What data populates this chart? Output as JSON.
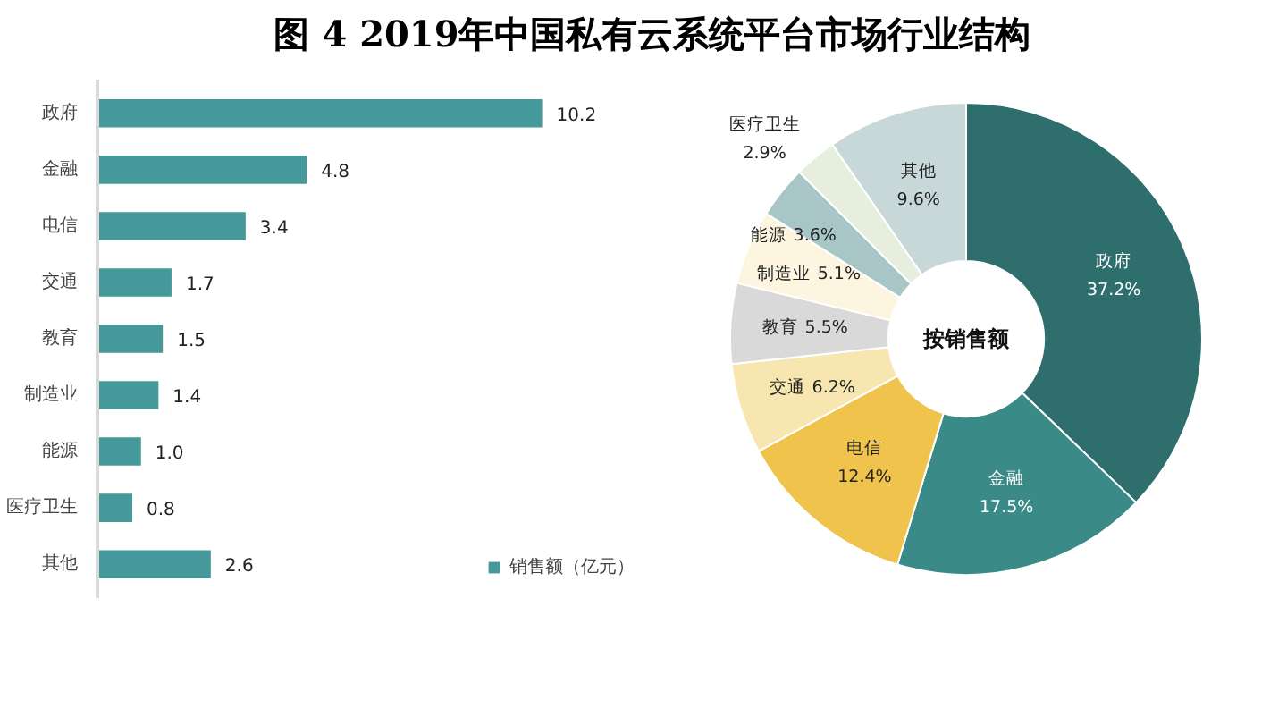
{
  "chart_data": [
    {
      "type": "bar",
      "title": "图 4  2019年中国私有云系统平台市场行业结构",
      "orientation": "horizontal",
      "categories": [
        "政府",
        "金融",
        "电信",
        "交通",
        "教育",
        "制造业",
        "能源",
        "医疗卫生",
        "其他"
      ],
      "series": [
        {
          "name": "销售额（亿元）",
          "color": "#45999a",
          "values": [
            10.2,
            4.8,
            3.4,
            1.7,
            1.5,
            1.4,
            1.0,
            0.8,
            2.6
          ],
          "value_labels": [
            "10.2",
            "4.8",
            "3.4",
            "1.7",
            "1.5",
            "1.4",
            "1.0",
            "0.8",
            "2.6"
          ]
        }
      ],
      "legend": "bottom right",
      "tick_labels": "y"
    },
    {
      "type": "donut",
      "title": "按销售额",
      "categories": [
        "政府",
        "金融",
        "电信",
        "交通",
        "教育",
        "制造业",
        "能源",
        "医疗卫生",
        "其他"
      ],
      "values": [
        37.2,
        17.5,
        12.4,
        6.2,
        5.5,
        5.1,
        3.6,
        2.9,
        9.6
      ],
      "value_labels": [
        "37.2%",
        "17.5%",
        "12.4%",
        "6.2%",
        "5.5%",
        "5.1%",
        "3.6%",
        "2.9%",
        "9.6%"
      ],
      "colors": [
        "#2e6e6c",
        "#3a8a87",
        "#f0c44c",
        "#f8e6b0",
        "#d9d9d9",
        "#fdf5e0",
        "#a9c6c6",
        "#e6efdd",
        "#c8d8d8"
      ]
    }
  ]
}
